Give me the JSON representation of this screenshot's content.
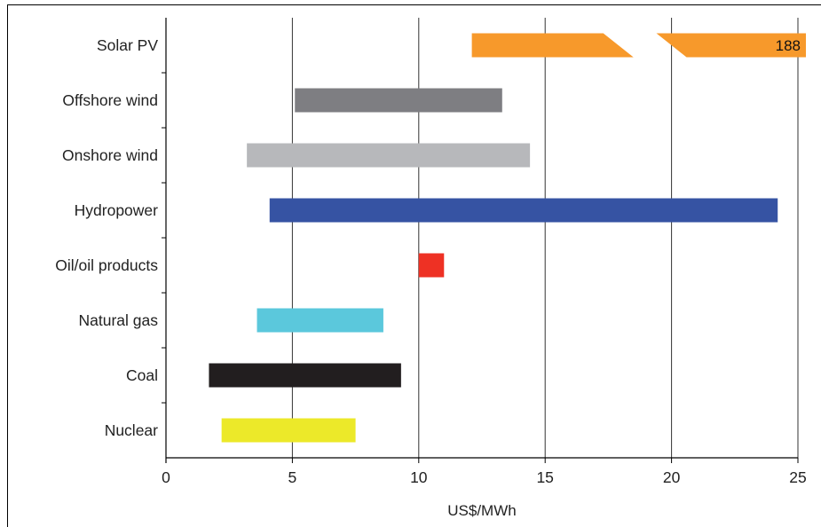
{
  "chart_data": {
    "type": "bar",
    "subtype": "floating-range-horizontal",
    "title": "",
    "xlabel": "US$/MWh",
    "ylabel": "",
    "xlim": [
      0,
      25
    ],
    "xticks": [
      0,
      5,
      10,
      15,
      20,
      25
    ],
    "grid": "vertical gridlines at each x tick",
    "legend": "none",
    "categories": [
      "Solar PV",
      "Offshore wind",
      "Onshore wind",
      "Hydropower",
      "Oil/oil products",
      "Natural gas",
      "Coal",
      "Nuclear"
    ],
    "ranges": [
      {
        "category": "Solar PV",
        "min": 12.1,
        "max": 188,
        "color": "#F7992B",
        "axis_break": [
          17.3,
          19.4
        ],
        "label": "188"
      },
      {
        "category": "Offshore wind",
        "min": 5.1,
        "max": 13.3,
        "color": "#7E7E82"
      },
      {
        "category": "Onshore wind",
        "min": 3.2,
        "max": 14.4,
        "color": "#B7B8BB"
      },
      {
        "category": "Hydropower",
        "min": 4.1,
        "max": 24.2,
        "color": "#3653A3"
      },
      {
        "category": "Oil/oil products",
        "min": 10.0,
        "max": 11.0,
        "color": "#EE3124"
      },
      {
        "category": "Natural gas",
        "min": 3.6,
        "max": 8.6,
        "color": "#5BC8DC"
      },
      {
        "category": "Coal",
        "min": 1.7,
        "max": 9.3,
        "color": "#221E1F"
      },
      {
        "category": "Nuclear",
        "min": 2.2,
        "max": 7.5,
        "color": "#ECE929"
      }
    ]
  }
}
